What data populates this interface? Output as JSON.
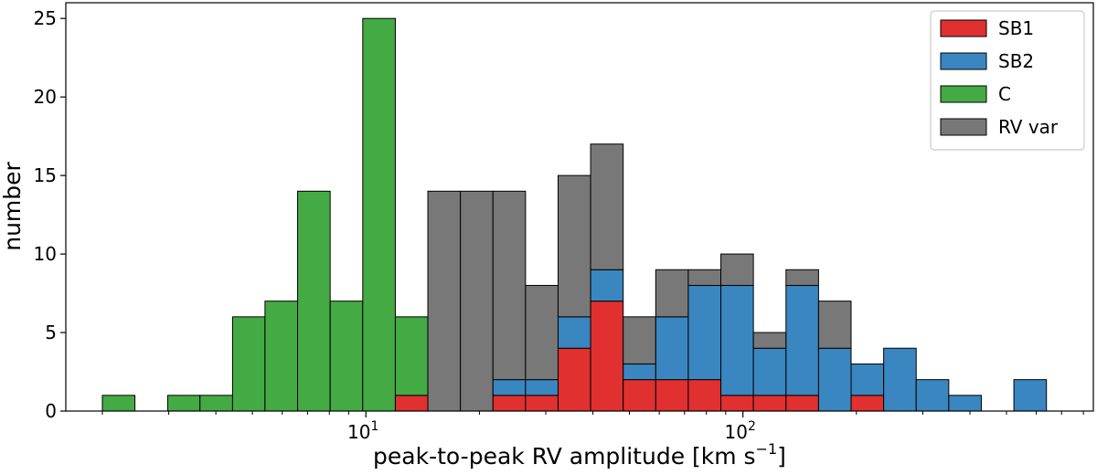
{
  "chart_data": {
    "type": "bar",
    "subtype": "stacked-histogram-logx",
    "title": "",
    "xlabel": "peak-to-peak RV amplitude [km s",
    "xlabel_sup": "−1",
    "xlabel_end": "]",
    "ylabel": "number",
    "xscale": "log",
    "xlim": [
      1.6,
      850
    ],
    "ylim": [
      0,
      26
    ],
    "yticks": [
      0,
      5,
      10,
      15,
      20,
      25
    ],
    "xticks_major": [
      {
        "value": 10,
        "base": "10",
        "exp": "1"
      },
      {
        "value": 100,
        "base": "10",
        "exp": "2"
      }
    ],
    "xticks_minor": [
      2,
      3,
      4,
      5,
      6,
      7,
      8,
      9,
      20,
      30,
      40,
      50,
      60,
      70,
      80,
      90,
      200,
      300,
      400,
      500,
      600,
      700,
      800
    ],
    "legend_position": "top-right",
    "bin_edges": [
      2.0,
      2.44,
      2.98,
      3.63,
      4.43,
      5.4,
      6.59,
      8.04,
      9.81,
      11.97,
      14.6,
      17.81,
      21.73,
      26.51,
      32.34,
      39.45,
      48.13,
      58.72,
      71.63,
      87.39,
      106.6,
      130.1,
      158.7,
      193.6,
      236.2,
      288.1,
      351.5,
      428.8,
      523.2,
      638.3
    ],
    "series": [
      {
        "name": "SB1",
        "color": "#e03030",
        "values": [
          0,
          0,
          0,
          0,
          0,
          0,
          0,
          0,
          0,
          1,
          0,
          0,
          1,
          1,
          4,
          7,
          2,
          2,
          2,
          1,
          1,
          1,
          0,
          1,
          0,
          0,
          0,
          0,
          0
        ]
      },
      {
        "name": "SB2",
        "color": "#3a86c0",
        "values": [
          0,
          0,
          0,
          0,
          0,
          0,
          0,
          0,
          0,
          0,
          0,
          0,
          1,
          1,
          2,
          2,
          1,
          4,
          6,
          7,
          3,
          7,
          4,
          2,
          4,
          2,
          1,
          0,
          2
        ]
      },
      {
        "name": "C",
        "color": "#44aa44",
        "values": [
          1,
          0,
          1,
          1,
          6,
          7,
          14,
          7,
          25,
          5,
          0,
          0,
          0,
          0,
          0,
          0,
          0,
          0,
          0,
          0,
          0,
          0,
          0,
          0,
          0,
          0,
          0,
          0,
          0
        ]
      },
      {
        "name": "RV var",
        "color": "#787878",
        "values": [
          0,
          0,
          0,
          0,
          0,
          0,
          0,
          0,
          0,
          0,
          14,
          14,
          12,
          6,
          9,
          8,
          3,
          3,
          1,
          2,
          1,
          1,
          3,
          0,
          0,
          0,
          0,
          0,
          0
        ]
      }
    ]
  }
}
